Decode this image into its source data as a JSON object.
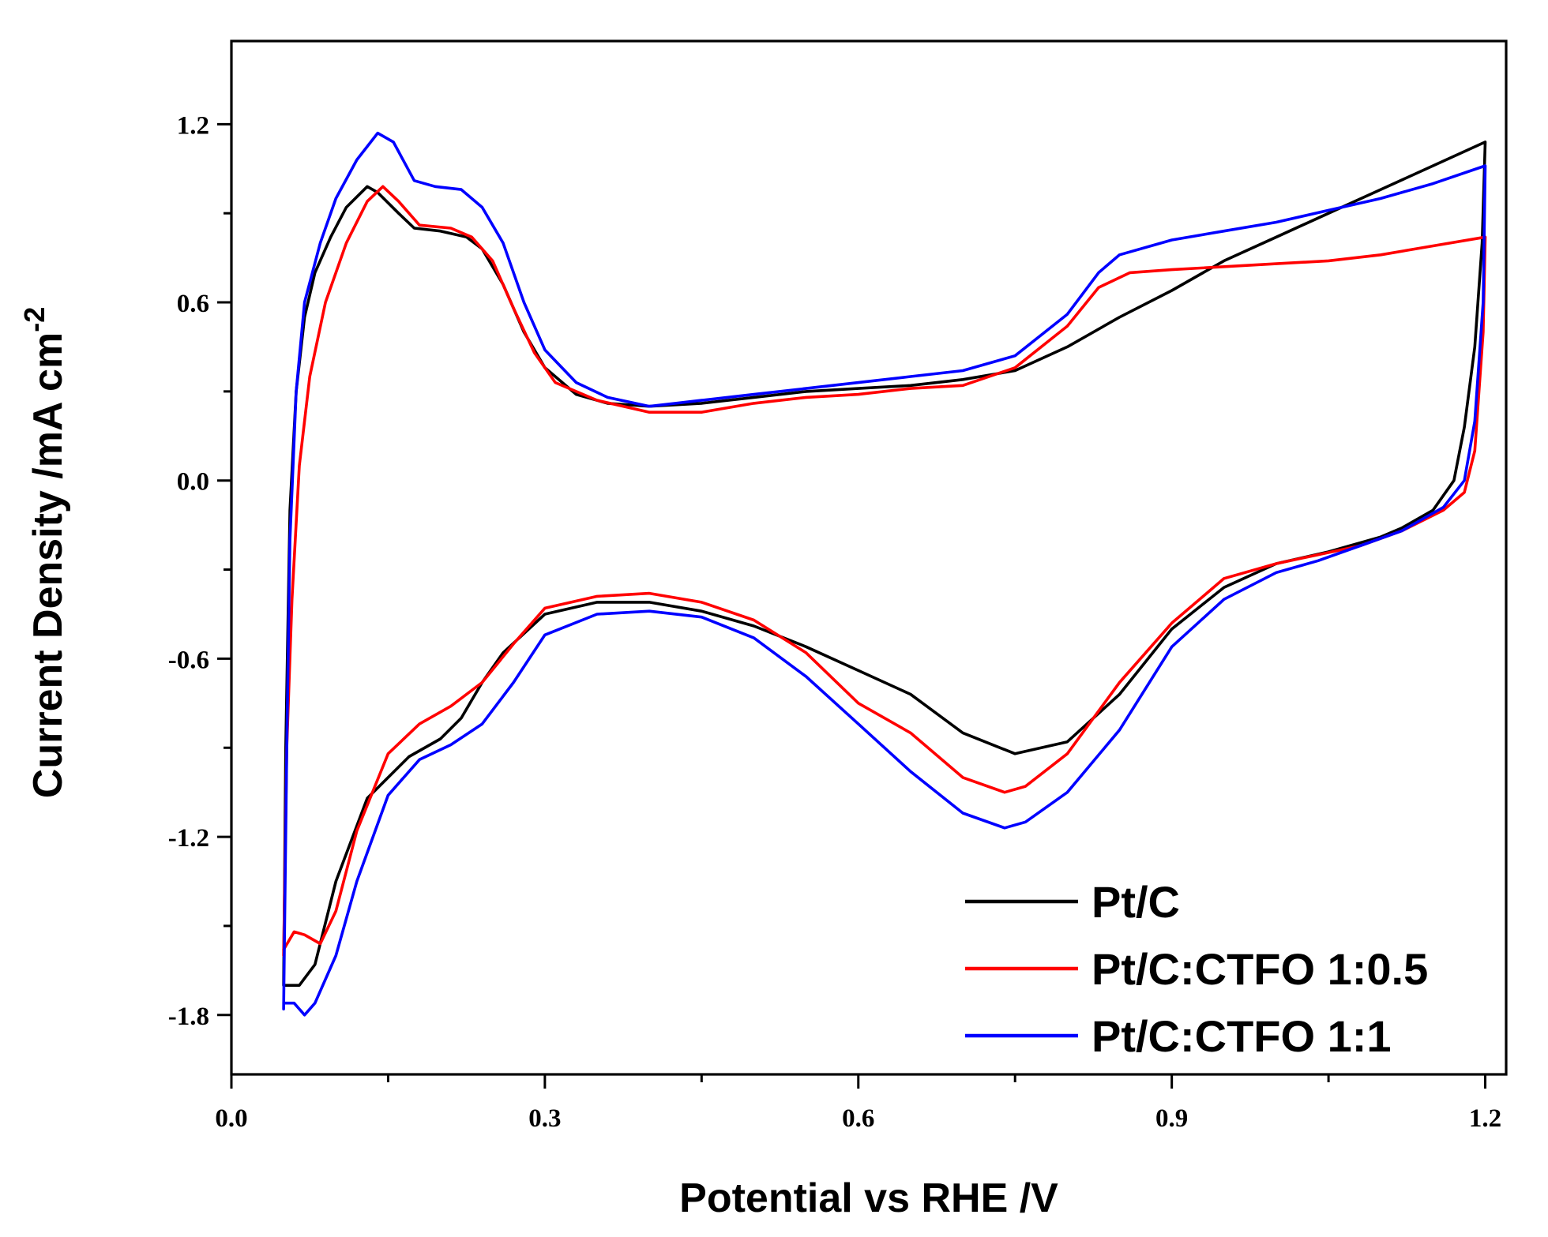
{
  "chart_data": {
    "type": "line",
    "title": "",
    "xlabel": "Potential vs RHE /V",
    "ylabel": "Current Density /mA cm",
    "ylabel_sup": "-2",
    "xlim": [
      0.0,
      1.22
    ],
    "ylim": [
      -2.0,
      1.48
    ],
    "x_ticks": [
      0.0,
      0.3,
      0.6,
      0.9,
      1.2
    ],
    "x_tick_labels": [
      "0.0",
      "0.3",
      "0.6",
      "0.9",
      "1.2"
    ],
    "x_minor_ticks": [
      0.15,
      0.45,
      0.75,
      1.05
    ],
    "y_ticks": [
      1.2,
      0.6,
      0.0,
      -0.6,
      -1.2,
      -1.8
    ],
    "y_tick_labels": [
      "1.2",
      "0.6",
      "0.0",
      "-0.6",
      "-1.2",
      "-1.8"
    ],
    "y_minor_ticks": [
      0.9,
      0.3,
      -0.3,
      -0.9,
      -1.5
    ],
    "grid": false,
    "legend_position": "bottom-right",
    "series": [
      {
        "name": "Pt/C",
        "color": "#000000",
        "anodic": [
          [
            0.05,
            -1.7
          ],
          [
            0.052,
            -0.9
          ],
          [
            0.056,
            -0.1
          ],
          [
            0.062,
            0.3
          ],
          [
            0.07,
            0.55
          ],
          [
            0.08,
            0.7
          ],
          [
            0.095,
            0.82
          ],
          [
            0.11,
            0.92
          ],
          [
            0.13,
            0.99
          ],
          [
            0.14,
            0.97
          ],
          [
            0.16,
            0.9
          ],
          [
            0.175,
            0.85
          ],
          [
            0.2,
            0.84
          ],
          [
            0.225,
            0.82
          ],
          [
            0.24,
            0.78
          ],
          [
            0.26,
            0.66
          ],
          [
            0.28,
            0.5
          ],
          [
            0.3,
            0.38
          ],
          [
            0.33,
            0.29
          ],
          [
            0.36,
            0.26
          ],
          [
            0.4,
            0.25
          ],
          [
            0.45,
            0.26
          ],
          [
            0.5,
            0.28
          ],
          [
            0.55,
            0.3
          ],
          [
            0.6,
            0.31
          ],
          [
            0.65,
            0.32
          ],
          [
            0.7,
            0.34
          ],
          [
            0.75,
            0.37
          ],
          [
            0.8,
            0.45
          ],
          [
            0.85,
            0.55
          ],
          [
            0.9,
            0.64
          ],
          [
            0.95,
            0.74
          ],
          [
            1.0,
            0.82
          ],
          [
            1.05,
            0.9
          ],
          [
            1.1,
            0.98
          ],
          [
            1.15,
            1.06
          ],
          [
            1.2,
            1.14
          ]
        ],
        "cathodic": [
          [
            1.2,
            1.14
          ],
          [
            1.197,
            0.8
          ],
          [
            1.19,
            0.45
          ],
          [
            1.18,
            0.18
          ],
          [
            1.17,
            0.0
          ],
          [
            1.15,
            -0.1
          ],
          [
            1.12,
            -0.16
          ],
          [
            1.1,
            -0.19
          ],
          [
            1.05,
            -0.24
          ],
          [
            1.0,
            -0.28
          ],
          [
            0.95,
            -0.36
          ],
          [
            0.9,
            -0.5
          ],
          [
            0.85,
            -0.72
          ],
          [
            0.8,
            -0.88
          ],
          [
            0.75,
            -0.92
          ],
          [
            0.7,
            -0.85
          ],
          [
            0.65,
            -0.72
          ],
          [
            0.6,
            -0.64
          ],
          [
            0.55,
            -0.56
          ],
          [
            0.5,
            -0.49
          ],
          [
            0.45,
            -0.44
          ],
          [
            0.4,
            -0.41
          ],
          [
            0.35,
            -0.41
          ],
          [
            0.3,
            -0.45
          ],
          [
            0.26,
            -0.58
          ],
          [
            0.24,
            -0.68
          ],
          [
            0.22,
            -0.8
          ],
          [
            0.2,
            -0.87
          ],
          [
            0.17,
            -0.93
          ],
          [
            0.13,
            -1.07
          ],
          [
            0.1,
            -1.35
          ],
          [
            0.08,
            -1.63
          ],
          [
            0.065,
            -1.7
          ],
          [
            0.05,
            -1.7
          ]
        ]
      },
      {
        "name": "Pt/C:CTFO 1:0.5",
        "color": "#ff0000",
        "anodic": [
          [
            0.05,
            -1.6
          ],
          [
            0.053,
            -0.9
          ],
          [
            0.058,
            -0.4
          ],
          [
            0.065,
            0.05
          ],
          [
            0.075,
            0.35
          ],
          [
            0.09,
            0.6
          ],
          [
            0.11,
            0.8
          ],
          [
            0.13,
            0.94
          ],
          [
            0.145,
            0.99
          ],
          [
            0.16,
            0.94
          ],
          [
            0.18,
            0.86
          ],
          [
            0.21,
            0.85
          ],
          [
            0.23,
            0.82
          ],
          [
            0.25,
            0.74
          ],
          [
            0.27,
            0.58
          ],
          [
            0.29,
            0.43
          ],
          [
            0.31,
            0.33
          ],
          [
            0.35,
            0.27
          ],
          [
            0.4,
            0.23
          ],
          [
            0.45,
            0.23
          ],
          [
            0.5,
            0.26
          ],
          [
            0.55,
            0.28
          ],
          [
            0.6,
            0.29
          ],
          [
            0.65,
            0.31
          ],
          [
            0.7,
            0.32
          ],
          [
            0.75,
            0.38
          ],
          [
            0.8,
            0.52
          ],
          [
            0.83,
            0.65
          ],
          [
            0.86,
            0.7
          ],
          [
            0.9,
            0.71
          ],
          [
            1.0,
            0.73
          ],
          [
            1.05,
            0.74
          ],
          [
            1.1,
            0.76
          ],
          [
            1.15,
            0.79
          ],
          [
            1.2,
            0.82
          ]
        ],
        "cathodic": [
          [
            1.2,
            0.82
          ],
          [
            1.198,
            0.5
          ],
          [
            1.19,
            0.1
          ],
          [
            1.18,
            -0.04
          ],
          [
            1.16,
            -0.1
          ],
          [
            1.12,
            -0.17
          ],
          [
            1.08,
            -0.22
          ],
          [
            1.04,
            -0.25
          ],
          [
            1.0,
            -0.28
          ],
          [
            0.95,
            -0.33
          ],
          [
            0.9,
            -0.48
          ],
          [
            0.85,
            -0.68
          ],
          [
            0.8,
            -0.92
          ],
          [
            0.76,
            -1.03
          ],
          [
            0.74,
            -1.05
          ],
          [
            0.7,
            -1.0
          ],
          [
            0.65,
            -0.85
          ],
          [
            0.6,
            -0.75
          ],
          [
            0.55,
            -0.58
          ],
          [
            0.5,
            -0.47
          ],
          [
            0.45,
            -0.41
          ],
          [
            0.4,
            -0.38
          ],
          [
            0.35,
            -0.39
          ],
          [
            0.3,
            -0.43
          ],
          [
            0.27,
            -0.55
          ],
          [
            0.24,
            -0.68
          ],
          [
            0.21,
            -0.76
          ],
          [
            0.18,
            -0.82
          ],
          [
            0.15,
            -0.92
          ],
          [
            0.12,
            -1.18
          ],
          [
            0.1,
            -1.45
          ],
          [
            0.085,
            -1.56
          ],
          [
            0.07,
            -1.53
          ],
          [
            0.06,
            -1.52
          ],
          [
            0.05,
            -1.58
          ]
        ]
      },
      {
        "name": "Pt/C:CTFO 1:1",
        "color": "#0000ff",
        "anodic": [
          [
            0.05,
            -1.78
          ],
          [
            0.053,
            -0.9
          ],
          [
            0.056,
            -0.2
          ],
          [
            0.062,
            0.3
          ],
          [
            0.07,
            0.6
          ],
          [
            0.085,
            0.8
          ],
          [
            0.1,
            0.95
          ],
          [
            0.12,
            1.08
          ],
          [
            0.14,
            1.17
          ],
          [
            0.155,
            1.14
          ],
          [
            0.175,
            1.01
          ],
          [
            0.195,
            0.99
          ],
          [
            0.22,
            0.98
          ],
          [
            0.24,
            0.92
          ],
          [
            0.26,
            0.8
          ],
          [
            0.28,
            0.6
          ],
          [
            0.3,
            0.44
          ],
          [
            0.33,
            0.33
          ],
          [
            0.36,
            0.28
          ],
          [
            0.4,
            0.25
          ],
          [
            0.45,
            0.27
          ],
          [
            0.5,
            0.29
          ],
          [
            0.55,
            0.31
          ],
          [
            0.6,
            0.33
          ],
          [
            0.65,
            0.35
          ],
          [
            0.7,
            0.37
          ],
          [
            0.75,
            0.42
          ],
          [
            0.8,
            0.56
          ],
          [
            0.83,
            0.7
          ],
          [
            0.85,
            0.76
          ],
          [
            0.9,
            0.81
          ],
          [
            0.95,
            0.84
          ],
          [
            1.0,
            0.87
          ],
          [
            1.05,
            0.91
          ],
          [
            1.1,
            0.95
          ],
          [
            1.15,
            1.0
          ],
          [
            1.2,
            1.06
          ]
        ],
        "cathodic": [
          [
            1.2,
            1.06
          ],
          [
            1.198,
            0.6
          ],
          [
            1.19,
            0.2
          ],
          [
            1.18,
            0.0
          ],
          [
            1.16,
            -0.09
          ],
          [
            1.12,
            -0.17
          ],
          [
            1.08,
            -0.22
          ],
          [
            1.04,
            -0.27
          ],
          [
            1.0,
            -0.31
          ],
          [
            0.95,
            -0.4
          ],
          [
            0.9,
            -0.56
          ],
          [
            0.85,
            -0.84
          ],
          [
            0.8,
            -1.05
          ],
          [
            0.76,
            -1.15
          ],
          [
            0.74,
            -1.17
          ],
          [
            0.7,
            -1.12
          ],
          [
            0.65,
            -0.98
          ],
          [
            0.6,
            -0.82
          ],
          [
            0.55,
            -0.66
          ],
          [
            0.5,
            -0.53
          ],
          [
            0.45,
            -0.46
          ],
          [
            0.4,
            -0.44
          ],
          [
            0.35,
            -0.45
          ],
          [
            0.3,
            -0.52
          ],
          [
            0.27,
            -0.68
          ],
          [
            0.24,
            -0.82
          ],
          [
            0.21,
            -0.89
          ],
          [
            0.18,
            -0.94
          ],
          [
            0.15,
            -1.06
          ],
          [
            0.12,
            -1.35
          ],
          [
            0.1,
            -1.6
          ],
          [
            0.08,
            -1.76
          ],
          [
            0.07,
            -1.8
          ],
          [
            0.06,
            -1.76
          ],
          [
            0.05,
            -1.76
          ]
        ]
      }
    ]
  }
}
